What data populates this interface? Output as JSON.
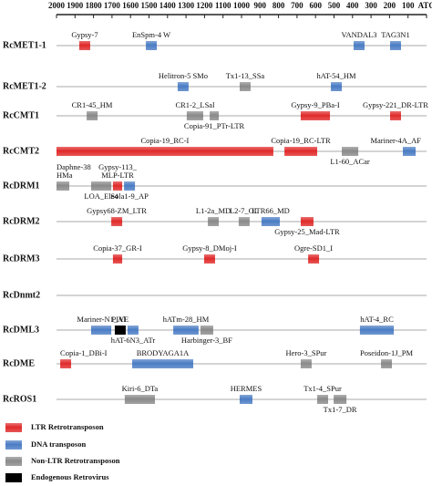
{
  "axis": {
    "ticks": [
      2000,
      1900,
      1800,
      1700,
      1600,
      1500,
      1400,
      1300,
      1200,
      1100,
      1000,
      900,
      800,
      700,
      600,
      500,
      400,
      300,
      200,
      100,
      {
        "value": 0,
        "label": "ATG"
      }
    ],
    "range": [
      2000,
      0
    ]
  },
  "legend": [
    {
      "label": "LTR Retrotransposon",
      "color": "#e02a2a"
    },
    {
      "label": "DNA transposon",
      "color": "#4a7cc4"
    },
    {
      "label": "Non-LTR Retrotransposon",
      "color": "#8a8a8a"
    },
    {
      "label": "Endogenous Retrovirus",
      "color": "#000000"
    }
  ],
  "rows": [
    {
      "name": "RcMET1-1",
      "elements": [
        {
          "label": "Gypsy-7",
          "start": 1877,
          "end": 1818,
          "color": "#e02a2a"
        },
        {
          "label": "EnSpm-4 W",
          "start": 1517,
          "end": 1458,
          "color": "#4a7cc4"
        },
        {
          "label": "VANDAL3",
          "start": 394,
          "end": 335,
          "color": "#4a7cc4"
        },
        {
          "label": "TAG3N1",
          "start": 197,
          "end": 138,
          "color": "#4a7cc4"
        }
      ]
    },
    {
      "name": "RcMET1-2",
      "elements": [
        {
          "label": "Helitron-5 SMo",
          "start": 1345,
          "end": 1286,
          "color": "#4a7cc4"
        },
        {
          "label": "Tx1-13_SSa",
          "start": 1010,
          "end": 951,
          "color": "#8a8a8a"
        },
        {
          "label": "hAT-54_HM",
          "start": 517,
          "end": 458,
          "color": "#4a7cc4"
        }
      ]
    },
    {
      "name": "RcCMT1",
      "elements": [
        {
          "label": "CR1-45_HM",
          "start": 1837,
          "end": 1778,
          "color": "#8a8a8a"
        },
        {
          "label": "CR1-2_LSal",
          "start": 1296,
          "end": 1207,
          "color": "#8a8a8a"
        },
        {
          "label": "Copia-91_PTr-LTR",
          "start": 1172,
          "end": 1123,
          "color": "#8a8a8a"
        },
        {
          "label": "Gypsy-9_PBa-I",
          "start": 680,
          "end": 522,
          "color": "#e02a2a"
        },
        {
          "label": "Gypsy-221_DR-LTR",
          "start": 197,
          "end": 138,
          "color": "#e02a2a"
        }
      ]
    },
    {
      "name": "RcCMT2",
      "elements": [
        {
          "label": "Copia-19_RC-I",
          "start": 2000,
          "end": 828,
          "color": "#e02a2a"
        },
        {
          "label": "Copia-19_RC-LTR",
          "start": 768,
          "end": 591,
          "color": "#e02a2a"
        },
        {
          "label": "L1-60_ACar",
          "start": 458,
          "end": 369,
          "color": "#8a8a8a"
        },
        {
          "label": "Mariner-4A_AF",
          "start": 128,
          "end": 59,
          "color": "#4a7cc4"
        }
      ]
    },
    {
      "name": "RcDRM1",
      "elements": [
        {
          "label": [
            "Daphne-38",
            "HMa"
          ],
          "start": 2000,
          "end": 1931,
          "color": "#8a8a8a"
        },
        {
          "label": "LOA_Ele4",
          "start": 1813,
          "end": 1704,
          "color": "#8a8a8a"
        },
        {
          "label": [
            "Gypsy-113_",
            "MLP-LTR"
          ],
          "start": 1695,
          "end": 1645,
          "color": "#e02a2a"
        },
        {
          "label": "Sola1-9_AP",
          "start": 1635,
          "end": 1576,
          "color": "#4a7cc4"
        }
      ]
    },
    {
      "name": "RcDRM2",
      "elements": [
        {
          "label": "Gypsy68-ZM_LTR",
          "start": 1704,
          "end": 1645,
          "color": "#e02a2a"
        },
        {
          "label": "L1-2a_MD",
          "start": 1182,
          "end": 1123,
          "color": "#8a8a8a"
        },
        {
          "label": "L2-7_OL",
          "start": 1015,
          "end": 956,
          "color": "#8a8a8a"
        },
        {
          "label": "LTR66_MD",
          "start": 892,
          "end": 793,
          "color": "#4a7cc4"
        },
        {
          "label": "Gypsy-25_Mad-LTR",
          "start": 680,
          "end": 611,
          "color": "#e02a2a"
        }
      ]
    },
    {
      "name": "RcDRM3",
      "elements": [
        {
          "label": "Copia-37_GR-I",
          "start": 1695,
          "end": 1645,
          "color": "#e02a2a"
        },
        {
          "label": "Gypsy-8_DMoj-I",
          "start": 1202,
          "end": 1143,
          "color": "#e02a2a"
        },
        {
          "label": "Ogre-SD1_I",
          "start": 640,
          "end": 581,
          "color": "#e02a2a"
        }
      ]
    },
    {
      "name": "RcDnmt2",
      "elements": []
    },
    {
      "name": "RcDML3",
      "elements": [
        {
          "label": "Mariner-N1_Al",
          "start": 1813,
          "end": 1704,
          "color": "#4a7cc4"
        },
        {
          "label": "PIVE",
          "start": 1685,
          "end": 1626,
          "color": "#000000"
        },
        {
          "label": "hAT-6N3_ATr",
          "start": 1616,
          "end": 1557,
          "color": "#4a7cc4"
        },
        {
          "label": "hATm-28_HM",
          "start": 1369,
          "end": 1232,
          "color": "#4a7cc4"
        },
        {
          "label": "Harbinger-3_BF",
          "start": 1222,
          "end": 1153,
          "color": "#8a8a8a"
        },
        {
          "label": "hAT-4_RC",
          "start": 360,
          "end": 177,
          "color": "#4a7cc4"
        }
      ]
    },
    {
      "name": "RcDME",
      "elements": [
        {
          "label": "Copia-1_DBi-I",
          "start": 1980,
          "end": 1921,
          "color": "#e02a2a"
        },
        {
          "label": "BRODYAGA1A",
          "start": 1591,
          "end": 1261,
          "color": "#4a7cc4"
        },
        {
          "label": "Hero-3_SPur",
          "start": 680,
          "end": 621,
          "color": "#8a8a8a"
        },
        {
          "label": "Poseidon-1J_PM",
          "start": 246,
          "end": 187,
          "color": "#8a8a8a"
        }
      ]
    },
    {
      "name": "RcROS1",
      "elements": [
        {
          "label": "Kiri-6_DTa",
          "start": 1631,
          "end": 1468,
          "color": "#8a8a8a"
        },
        {
          "label": "HERMES",
          "start": 1010,
          "end": 941,
          "color": "#4a7cc4"
        },
        {
          "label": "Tx1-4_SPur",
          "start": 591,
          "end": 532,
          "color": "#8a8a8a"
        },
        {
          "label": "Tx1-7_DR",
          "start": 502,
          "end": 433,
          "color": "#8a8a8a"
        }
      ]
    }
  ]
}
